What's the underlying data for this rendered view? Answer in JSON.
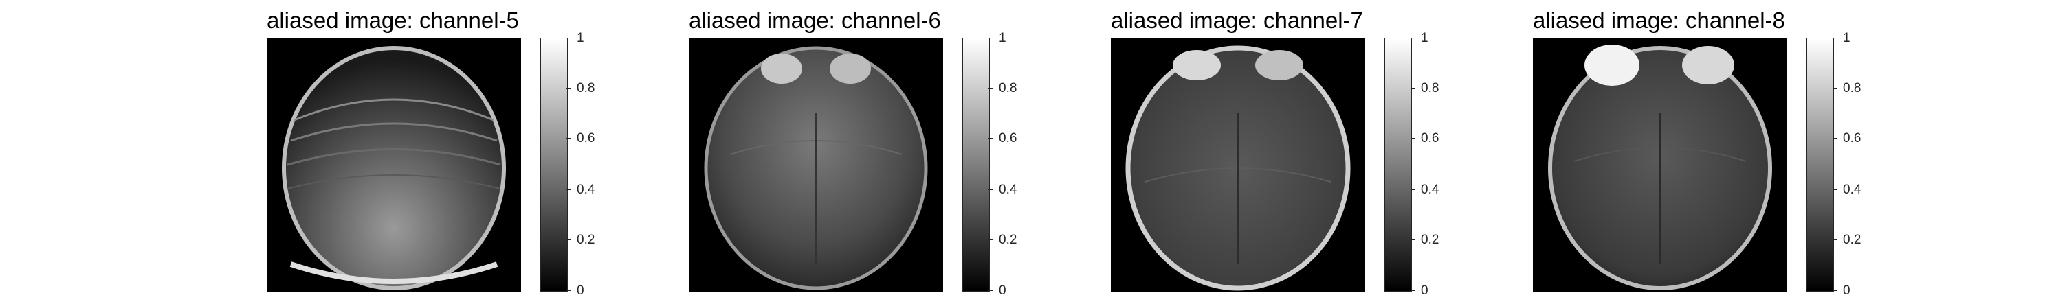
{
  "panels": [
    {
      "title": "aliased image: channel-5",
      "brightness": "lower"
    },
    {
      "title": "aliased image: channel-6",
      "brightness": "front"
    },
    {
      "title": "aliased image: channel-7",
      "brightness": "rim"
    },
    {
      "title": "aliased image: channel-8",
      "brightness": "front"
    }
  ],
  "colorbar": {
    "ticks": [
      "1",
      "0.8",
      "0.6",
      "0.4",
      "0.2",
      "0"
    ]
  },
  "colors": {
    "background": "#ffffff",
    "image_background": "#000000"
  }
}
